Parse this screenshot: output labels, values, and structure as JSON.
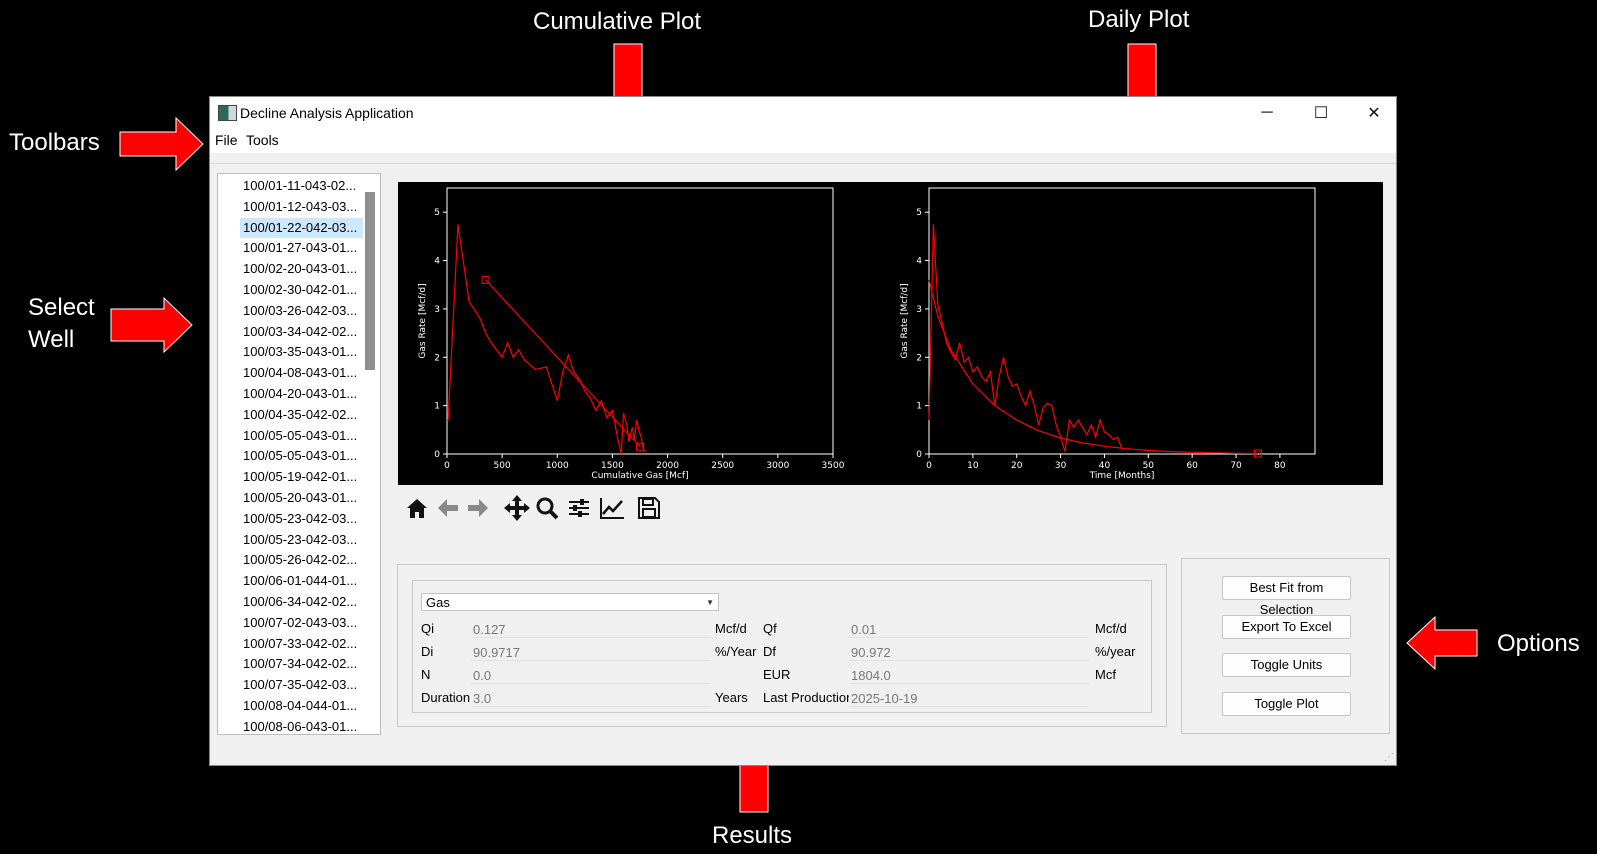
{
  "annotations": {
    "cumulative_plot": "Cumulative Plot",
    "daily_plot": "Daily Plot",
    "toolbars": "Toolbars",
    "select_well": "Select\nWell",
    "options": "Options",
    "results": "Results"
  },
  "colors": {
    "arrow": "#ff0000",
    "plot_line": "#ff0000",
    "selection": "#cce8ff"
  },
  "window": {
    "title": "Decline Analysis Application",
    "controls": {
      "minimize": "─",
      "maximize": "☐",
      "close": "✕"
    }
  },
  "menu": [
    "File",
    "Tools"
  ],
  "wells": {
    "selected_index": 2,
    "items": [
      "100/01-11-043-02...",
      "100/01-12-043-03...",
      "100/01-22-042-03...",
      "100/01-27-043-01...",
      "100/02-20-043-01...",
      "100/02-30-042-01...",
      "100/03-26-042-03...",
      "100/03-34-042-02...",
      "100/03-35-043-01...",
      "100/04-08-043-01...",
      "100/04-20-043-01...",
      "100/04-35-042-02...",
      "100/05-05-043-01...",
      "100/05-05-043-01...",
      "100/05-19-042-01...",
      "100/05-20-043-01...",
      "100/05-23-042-03...",
      "100/05-23-042-03...",
      "100/05-26-042-02...",
      "100/06-01-044-01...",
      "100/06-34-042-02...",
      "100/07-02-043-03...",
      "100/07-33-042-02...",
      "100/07-34-042-02...",
      "100/07-35-042-03...",
      "100/08-04-044-01...",
      "100/08-06-043-01..."
    ]
  },
  "chart_data": [
    {
      "type": "line",
      "xlabel": "Cumulative Gas [Mcf]",
      "ylabel": "Gas Rate [Mcf/d]",
      "xlim": [
        0,
        3500
      ],
      "ylim": [
        0,
        5.5
      ],
      "xticks": [
        0,
        500,
        1000,
        1500,
        2000,
        2500,
        3000,
        3500
      ],
      "yticks": [
        0,
        1,
        2,
        3,
        4,
        5
      ],
      "series": [
        {
          "x": [
            0,
            10,
            100,
            200,
            300,
            350,
            400,
            450,
            500,
            550,
            600,
            650,
            700,
            750,
            800,
            900,
            1000,
            1050,
            1100,
            1150,
            1200,
            1250,
            1300,
            1350,
            1400,
            1450,
            1500,
            1550,
            1580,
            1600,
            1630,
            1650,
            1680,
            1700,
            1720,
            1740,
            1760,
            1780,
            1800
          ],
          "y": [
            0.7,
            0.7,
            4.75,
            3.15,
            2.8,
            2.5,
            2.3,
            2.15,
            2.0,
            2.3,
            2.0,
            2.15,
            1.95,
            1.85,
            1.75,
            1.8,
            1.1,
            1.7,
            2.05,
            1.7,
            1.55,
            1.3,
            1.15,
            0.9,
            1.1,
            0.75,
            0.9,
            0.3,
            0.0,
            0.85,
            0.6,
            0.25,
            0.55,
            0.3,
            0.7,
            0.5,
            0.35,
            0.1,
            0.05
          ]
        },
        {
          "x": [
            350,
            1750
          ],
          "y": [
            3.6,
            0.15
          ]
        }
      ],
      "markers": [
        {
          "x": 350,
          "y": 3.6
        },
        {
          "x": 1750,
          "y": 0.15
        }
      ]
    },
    {
      "type": "line",
      "xlabel": "Time [Months]",
      "ylabel": "Gas Rate [Mcf/d]",
      "xlim": [
        0,
        88
      ],
      "ylim": [
        0,
        5.5
      ],
      "xticks": [
        0,
        10,
        20,
        30,
        40,
        50,
        60,
        70,
        80
      ],
      "yticks": [
        0,
        1,
        2,
        3,
        4,
        5
      ],
      "series": [
        {
          "x": [
            0,
            1,
            2,
            3,
            4,
            5,
            6,
            7,
            8,
            9,
            10,
            11,
            12,
            13,
            14,
            15,
            16,
            17,
            18,
            19,
            20,
            21,
            22,
            23,
            24,
            25,
            26,
            27,
            28,
            29,
            30,
            31,
            32,
            33,
            34,
            35,
            36,
            37,
            38,
            39,
            40,
            41,
            42,
            43,
            44
          ],
          "y": [
            0.7,
            4.75,
            3.1,
            2.7,
            2.3,
            2.1,
            1.95,
            2.3,
            1.9,
            2.0,
            1.7,
            1.8,
            1.6,
            1.5,
            1.7,
            1.0,
            1.6,
            2.0,
            1.6,
            1.4,
            1.45,
            1.2,
            1.0,
            1.3,
            1.0,
            0.6,
            0.95,
            1.05,
            1.0,
            0.6,
            0.35,
            0.05,
            0.7,
            0.55,
            0.7,
            0.55,
            0.4,
            0.6,
            0.35,
            0.7,
            0.45,
            0.4,
            0.3,
            0.35,
            0.1
          ]
        },
        {
          "x": [
            0,
            2,
            5,
            10,
            15,
            20,
            25,
            30,
            35,
            40,
            45,
            50,
            55,
            60,
            65,
            70,
            75
          ],
          "y": [
            3.6,
            2.85,
            2.15,
            1.45,
            1.0,
            0.7,
            0.48,
            0.33,
            0.23,
            0.16,
            0.11,
            0.075,
            0.05,
            0.035,
            0.025,
            0.015,
            0.01
          ]
        }
      ],
      "markers": [
        {
          "x": 75,
          "y": 0.01
        }
      ]
    }
  ],
  "nav_toolbar": [
    "home-icon",
    "back-icon",
    "forward-icon",
    "pan-icon",
    "zoom-icon",
    "configure-icon",
    "edit-curve-icon",
    "save-icon"
  ],
  "results": {
    "stream": "Gas",
    "left": [
      {
        "label": "Qi",
        "value": "0.127",
        "unit": "Mcf/d"
      },
      {
        "label": "Di",
        "value": "90.9717",
        "unit": "%/Year"
      },
      {
        "label": "N",
        "value": "0.0",
        "unit": ""
      },
      {
        "label": "Duration",
        "value": "3.0",
        "unit": "Years"
      }
    ],
    "right": [
      {
        "label": "Qf",
        "value": "0.01",
        "unit": "Mcf/d"
      },
      {
        "label": "Df",
        "value": "90.972",
        "unit": "%/year"
      },
      {
        "label": "EUR",
        "value": "1804.0",
        "unit": "Mcf"
      },
      {
        "label": "Last Production",
        "value": "2025-10-19",
        "unit": ""
      }
    ]
  },
  "options": [
    "Best Fit from Selection",
    "Export To Excel",
    "Toggle Units",
    "Toggle Plot"
  ]
}
